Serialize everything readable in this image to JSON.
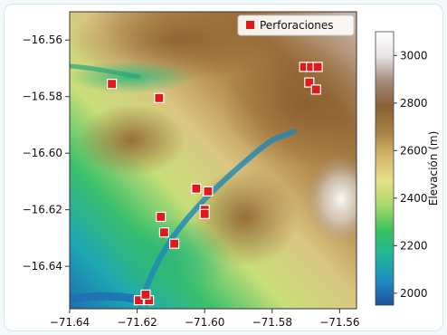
{
  "chart_data": {
    "type": "heatmap",
    "title": "",
    "xlabel": "",
    "ylabel": "",
    "xlim": [
      -71.64,
      -71.555
    ],
    "ylim": [
      -16.655,
      -16.55
    ],
    "x_ticks": [
      -71.64,
      -71.62,
      -71.6,
      -71.58,
      -71.56
    ],
    "x_tick_labels": [
      "−71.64",
      "−71.62",
      "−71.60",
      "−71.58",
      "−71.56"
    ],
    "y_ticks": [
      -16.56,
      -16.58,
      -16.6,
      -16.62,
      -16.64
    ],
    "y_tick_labels": [
      "−16.56",
      "−16.58",
      "−16.60",
      "−16.62",
      "−16.64"
    ],
    "colorbar": {
      "label": "Elevación (m)",
      "min": 1950,
      "max": 3100,
      "ticks": [
        2000,
        2200,
        2400,
        2600,
        2800,
        3000
      ],
      "colors": [
        "#1f4fa0",
        "#1e8fc0",
        "#20b59a",
        "#39c25b",
        "#a8d86a",
        "#e6e08a",
        "#d6b56b",
        "#a77f45",
        "#8a6034",
        "#a6887a",
        "#e7e3e3",
        "#ffffff"
      ]
    },
    "legend": {
      "position": "top-right",
      "entries": [
        {
          "label": "Perforaciones",
          "marker": "square",
          "color": "#e0191b"
        }
      ]
    },
    "grid": false,
    "series": [
      {
        "name": "Perforaciones",
        "marker_color": "#e0191b",
        "x": [
          -71.6275,
          -71.6135,
          -71.5705,
          -71.5685,
          -71.5665,
          -71.569,
          -71.567,
          -71.6025,
          -71.599,
          -71.6,
          -71.6,
          -71.613,
          -71.612,
          -71.609,
          -71.6195,
          -71.6165,
          -71.6175
        ],
        "y": [
          -16.5755,
          -16.5805,
          -16.5695,
          -16.5695,
          -16.5695,
          -16.575,
          -16.5775,
          -16.6125,
          -16.6135,
          -16.62,
          -16.6215,
          -16.6225,
          -16.628,
          -16.632,
          -16.652,
          -16.652,
          -16.65
        ]
      }
    ]
  }
}
